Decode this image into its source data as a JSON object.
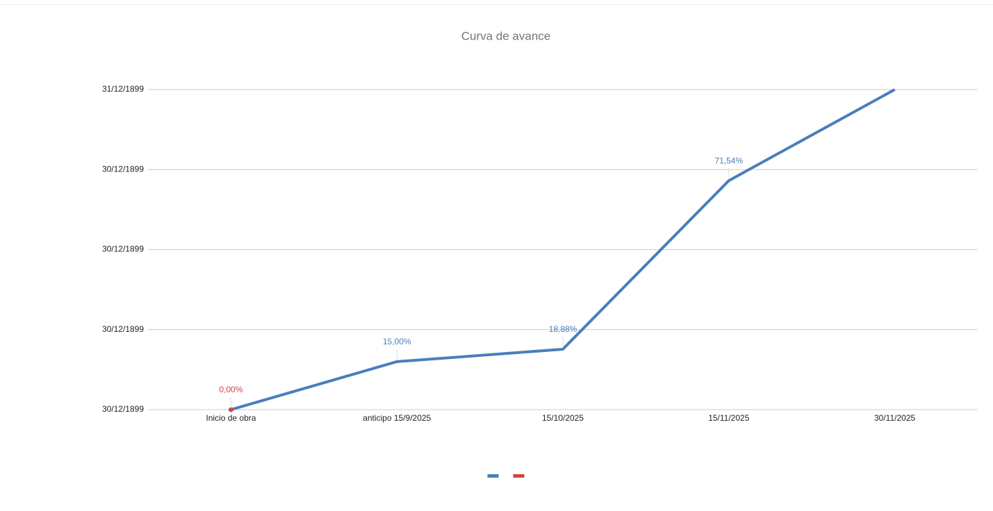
{
  "chart_data": {
    "type": "line",
    "title": "Curva de avance",
    "categories": [
      "Inicio de obra",
      "anticipo 15/9/2025",
      "15/10/2025",
      "15/11/2025",
      "30/11/2025"
    ],
    "series": [
      {
        "color": "#4a7ebb",
        "values": [
          0,
          0.15,
          0.1888,
          0.7154,
          1
        ],
        "value_labels": [
          null,
          "15,00%",
          "18,88%",
          "71,54%",
          null
        ]
      },
      {
        "color": "#d04444",
        "values": [
          0,
          null,
          null,
          null,
          null
        ],
        "value_labels": [
          "0,00%",
          null,
          null,
          null,
          null
        ]
      }
    ],
    "ylim": [
      0,
      1
    ],
    "yticks": [
      {
        "value": 0,
        "label": "30/12/1899"
      },
      {
        "value": 0.25,
        "label": "30/12/1899"
      },
      {
        "value": 0.5,
        "label": "30/12/1899"
      },
      {
        "value": 0.75,
        "label": "30/12/1899"
      },
      {
        "value": 1,
        "label": "31/12/1899"
      }
    ],
    "grid": true,
    "legend": "bottom"
  }
}
